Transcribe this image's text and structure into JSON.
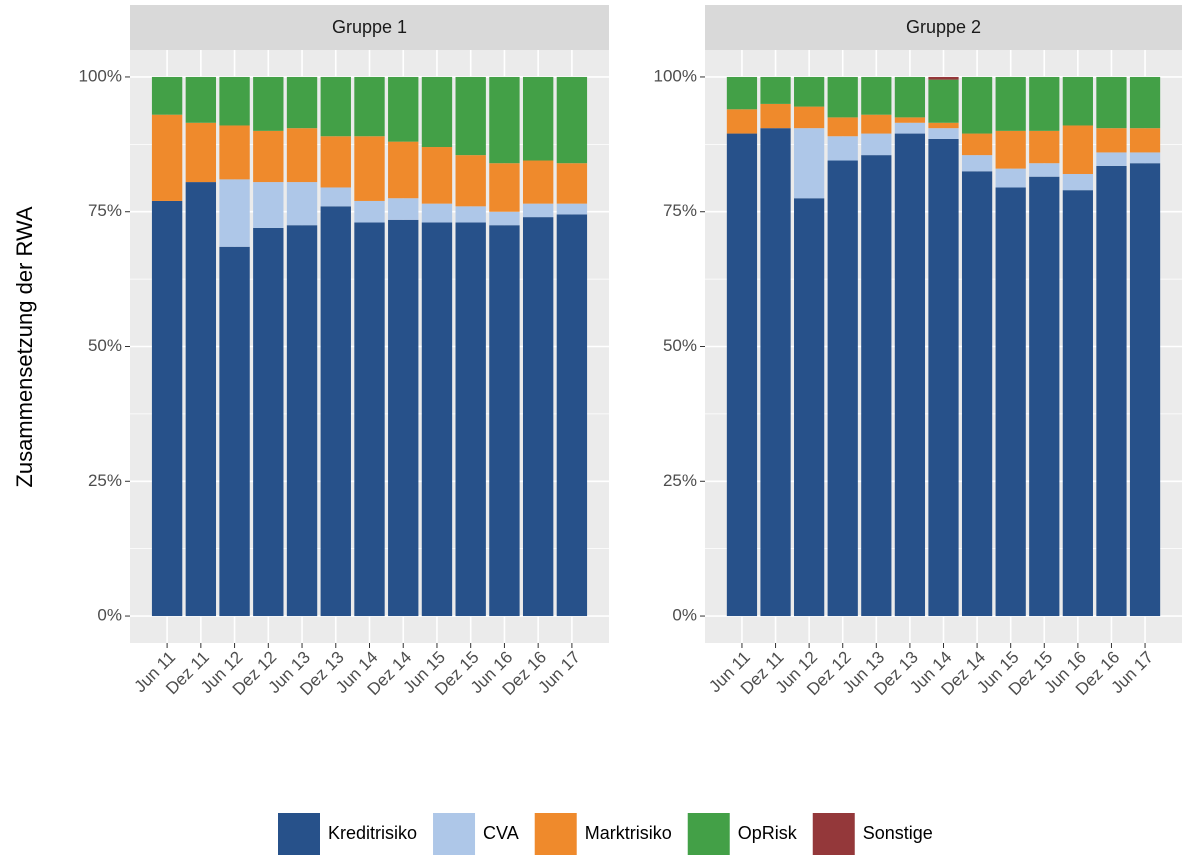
{
  "chart_data": [
    {
      "type": "bar",
      "stacked": true,
      "title": "Gruppe 1",
      "y_label": "Zusammensetzung der RWA",
      "categories": [
        "Jun 11",
        "Dez 11",
        "Jun 12",
        "Dez 12",
        "Jun 13",
        "Dez 13",
        "Jun 14",
        "Dez 14",
        "Jun 15",
        "Dez 15",
        "Jun 16",
        "Dez 16",
        "Jun 17"
      ],
      "series": [
        {
          "name": "Kreditrisiko",
          "color": "#27518a",
          "values": [
            77,
            80.5,
            68.5,
            72,
            72.5,
            76,
            73,
            73.5,
            73,
            73,
            72.5,
            74,
            74.5
          ]
        },
        {
          "name": "CVA",
          "color": "#aec7e8",
          "values": [
            0,
            0,
            12.5,
            8.5,
            8,
            3.5,
            4,
            4,
            3.5,
            3,
            2.5,
            2.5,
            2
          ]
        },
        {
          "name": "Marktrisiko",
          "color": "#ef8a2c",
          "values": [
            16,
            11,
            10,
            9.5,
            10,
            9.5,
            12,
            10.5,
            10.5,
            9.5,
            9,
            8,
            7.5
          ]
        },
        {
          "name": "OpRisk",
          "color": "#43a047",
          "values": [
            7,
            8.5,
            9,
            10,
            9.5,
            11,
            11,
            12,
            13,
            14.5,
            16,
            15.5,
            16
          ]
        },
        {
          "name": "Sonstige",
          "color": "#94383a",
          "values": [
            0,
            0,
            0,
            0,
            0,
            0,
            0,
            0,
            0,
            0,
            0,
            0,
            0
          ]
        }
      ],
      "ylim": [
        -5,
        105
      ],
      "yticks": [
        {
          "value": 0,
          "label": "0%"
        },
        {
          "value": 25,
          "label": "25%"
        },
        {
          "value": 50,
          "label": "50%"
        },
        {
          "value": 75,
          "label": "75%"
        },
        {
          "value": 100,
          "label": "100%"
        }
      ],
      "grid": true
    },
    {
      "type": "bar",
      "stacked": true,
      "title": "Gruppe 2",
      "categories": [
        "Jun 11",
        "Dez 11",
        "Jun 12",
        "Dez 12",
        "Jun 13",
        "Dez 13",
        "Jun 14",
        "Dez 14",
        "Jun 15",
        "Dez 15",
        "Jun 16",
        "Dez 16",
        "Jun 17"
      ],
      "series": [
        {
          "values": [
            89.5,
            90.5,
            77.5,
            84.5,
            85.5,
            89.5,
            88.5,
            82.5,
            79.5,
            81.5,
            79,
            83.5,
            84
          ]
        },
        {
          "values": [
            0,
            0,
            13,
            4.5,
            4,
            2,
            2,
            3,
            3.5,
            2.5,
            3,
            2.5,
            2
          ]
        },
        {
          "values": [
            4.5,
            4.5,
            4,
            3.5,
            3.5,
            1,
            1,
            4,
            7,
            6,
            9,
            4.5,
            4.5
          ]
        },
        {
          "values": [
            6,
            5,
            5.5,
            7.5,
            7,
            7.5,
            8,
            10.5,
            10,
            10,
            9,
            9.5,
            9.5
          ]
        },
        {
          "values": [
            0,
            0,
            0,
            0,
            0,
            0,
            0.5,
            0,
            0,
            0,
            0,
            0,
            0
          ]
        }
      ],
      "ylim": [
        -5,
        105
      ],
      "yticks": [
        {
          "value": 0,
          "label": "0%"
        },
        {
          "value": 25,
          "label": "25%"
        },
        {
          "value": 50,
          "label": "50%"
        },
        {
          "value": 75,
          "label": "75%"
        },
        {
          "value": 100,
          "label": "100%"
        }
      ],
      "grid": true
    }
  ]
}
